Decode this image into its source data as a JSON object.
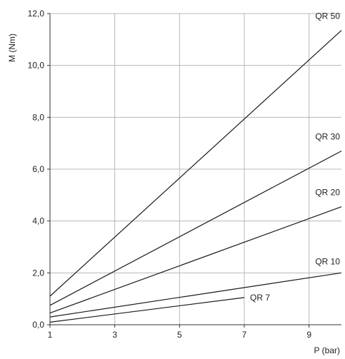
{
  "chart_data": {
    "type": "line",
    "title": "",
    "xlabel": "P (bar)",
    "ylabel": "M (Nm)",
    "xlim": [
      1,
      10
    ],
    "ylim": [
      0,
      12
    ],
    "xticks": [
      1,
      3,
      5,
      7,
      9
    ],
    "xtick_labels": [
      "1",
      "3",
      "5",
      "7",
      "9"
    ],
    "yticks": [
      0,
      2,
      4,
      6,
      8,
      10,
      12
    ],
    "ytick_labels": [
      "0,0",
      "2,0",
      "4,0",
      "6,0",
      "8,0",
      "10,0",
      "12,0"
    ],
    "grid": true,
    "series": [
      {
        "name": "QR 50",
        "x": [
          1,
          10
        ],
        "y": [
          1.1,
          11.35
        ]
      },
      {
        "name": "QR 30",
        "x": [
          1,
          10
        ],
        "y": [
          0.75,
          6.7
        ]
      },
      {
        "name": "QR 20",
        "x": [
          1,
          10
        ],
        "y": [
          0.45,
          4.55
        ]
      },
      {
        "name": "QR 10",
        "x": [
          1,
          10
        ],
        "y": [
          0.3,
          2.0
        ]
      },
      {
        "name": "QR 7",
        "x": [
          1,
          7
        ],
        "y": [
          0.1,
          1.05
        ]
      }
    ]
  },
  "colors": {
    "line": "#1a1a1a",
    "grid": "#b8b8b8",
    "axis": "#333333"
  }
}
